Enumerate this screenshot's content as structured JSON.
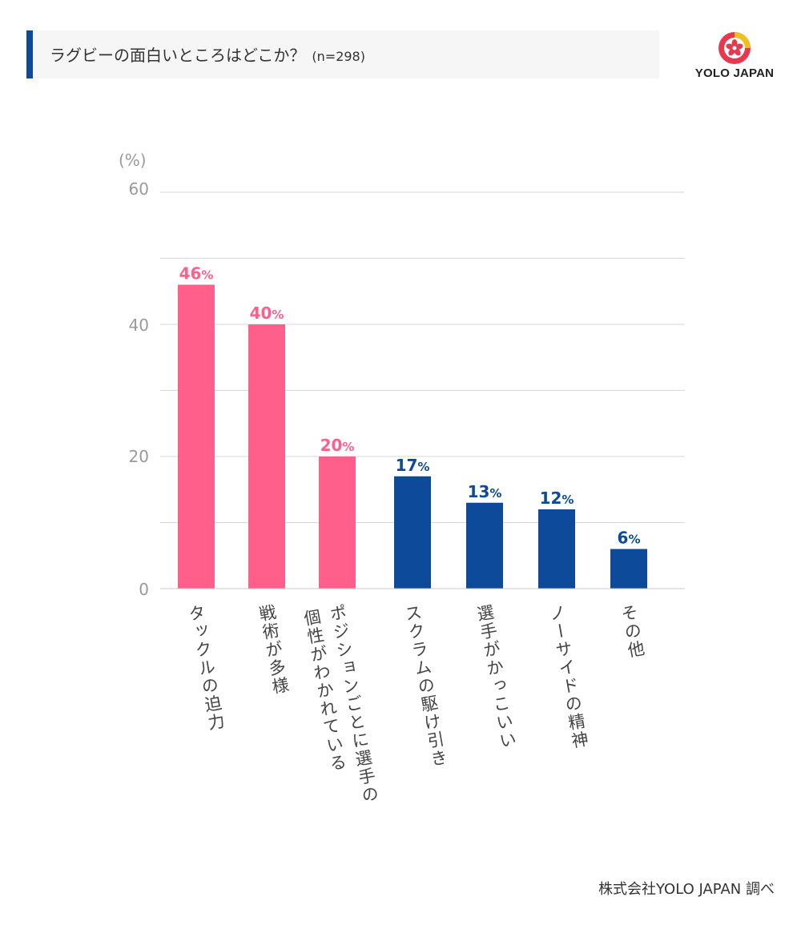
{
  "header": {
    "title": "ラグビーの面白いところはどこか？",
    "sample": "(n=298)"
  },
  "logo": {
    "text": "YOLO JAPAN",
    "icon": "cherry-blossom-icon"
  },
  "colors": {
    "highlight": "#ff5f8a",
    "normal": "#0d4a99",
    "accent": "#0d4a99",
    "grid": "#d7d7d7"
  },
  "chart_data": {
    "type": "bar",
    "title": "ラグビーの面白いところはどこか？",
    "ylabel": "(%)",
    "ylim": [
      0,
      60
    ],
    "yticks": [
      "60",
      "40",
      "20",
      "0"
    ],
    "categories": [
      "タックルの迫力",
      "戦術が多様",
      "ポジションごとに選手の個性がわかれている",
      "スクラムの駆け引き",
      "選手がかっこいい",
      "ノーサイドの精神",
      "その他"
    ],
    "label_lines": [
      [
        "タックルの迫力"
      ],
      [
        "戦術が多様"
      ],
      [
        "ポジションごとに選手の",
        "個性がわかれている"
      ],
      [
        "スクラムの駆け引き"
      ],
      [
        "選手がかっこいい"
      ],
      [
        "ノーサイドの精神"
      ],
      [
        "その他"
      ]
    ],
    "values": [
      46,
      40,
      20,
      17,
      13,
      12,
      6
    ],
    "value_labels": [
      "46",
      "40",
      "20",
      "17",
      "13",
      "12",
      "6"
    ],
    "percent_sign": "%",
    "highlight": [
      true,
      true,
      true,
      false,
      false,
      false,
      false
    ]
  },
  "footer": {
    "source": "株式会社YOLO JAPAN 調べ"
  }
}
